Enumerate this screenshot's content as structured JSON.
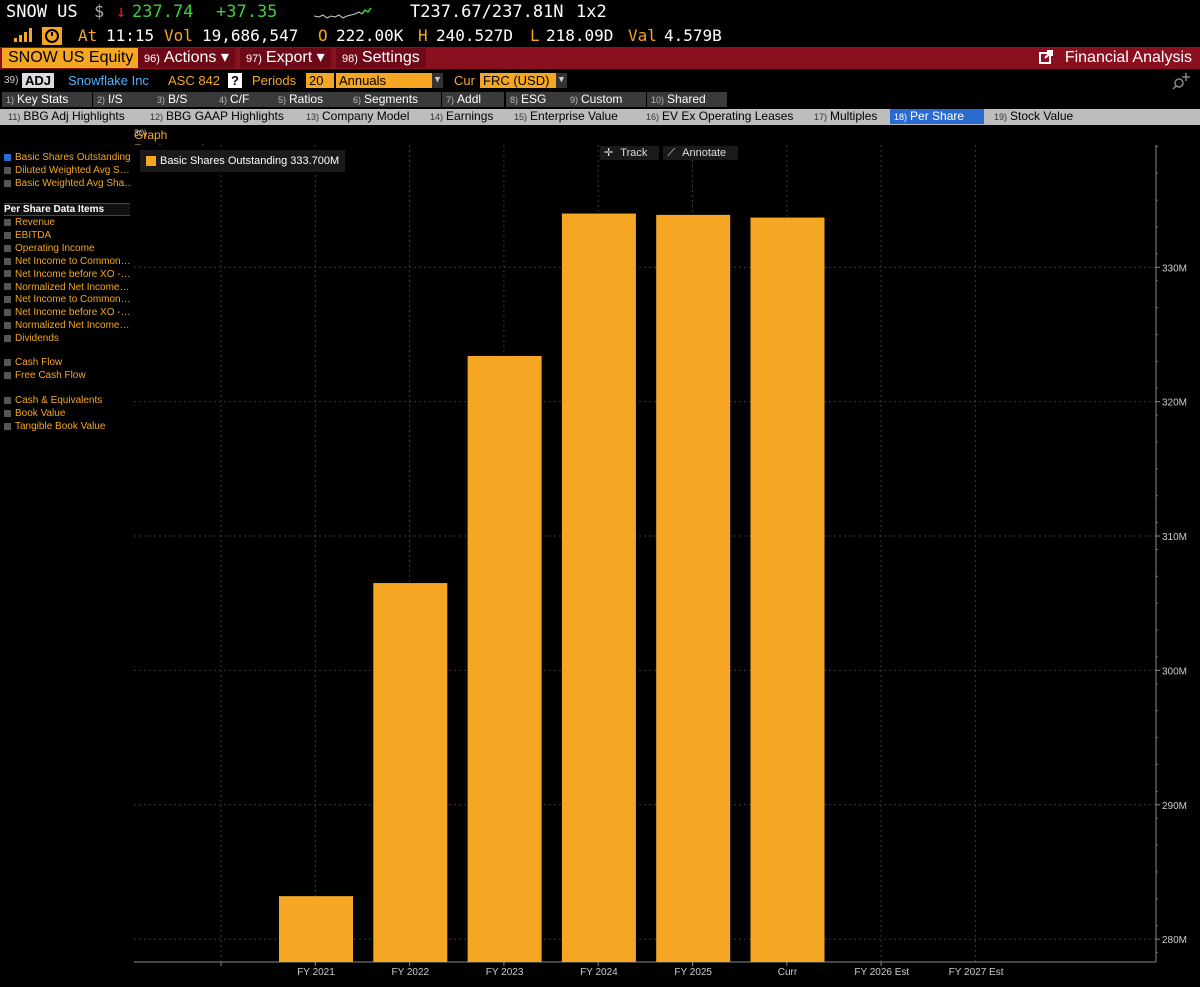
{
  "ticker": {
    "symbol": "SNOW US",
    "currency": "$",
    "arrow": "↓",
    "price": "237.74",
    "change": "+37.35",
    "quote": "T237.67/237.81N",
    "size": "1x2",
    "at_label": "At",
    "time": "11:15",
    "vol_label": "Vol",
    "vol": "19,686,547",
    "open_label": "O",
    "open": "222.00K",
    "high_label": "H",
    "high": "240.527D",
    "low_label": "L",
    "low": "218.09D",
    "val_label": "Val",
    "val": "4.579B"
  },
  "menu": {
    "equity": "SNOW US Equity",
    "actions_num": "96)",
    "actions": "Actions ▾",
    "export_num": "97)",
    "export": "Export ▾",
    "settings_num": "98)",
    "settings": "Settings",
    "financial_analysis": "Financial Analysis"
  },
  "controls": {
    "num": "39)",
    "adj": "ADJ",
    "company": "Snowflake Inc",
    "asc": "ASC 842",
    "help": "?",
    "periods_label": "Periods",
    "periods": "20",
    "freq": "Annuals",
    "cur_label": "Cur",
    "cur": "FRC (USD)"
  },
  "tabs1": [
    {
      "n": "1)",
      "label": "Key Stats"
    },
    {
      "n": "2)",
      "label": "I/S"
    },
    {
      "n": "3)",
      "label": "B/S"
    },
    {
      "n": "4)",
      "label": "C/F"
    },
    {
      "n": "5)",
      "label": "Ratios"
    },
    {
      "n": "6)",
      "label": "Segments"
    },
    {
      "n": "7)",
      "label": "Addl"
    },
    {
      "n": "8)",
      "label": "ESG"
    },
    {
      "n": "9)",
      "label": "Custom"
    },
    {
      "n": "10)",
      "label": "Shared"
    }
  ],
  "tabs2": [
    {
      "n": "11)",
      "label": "BBG Adj Highlights"
    },
    {
      "n": "12)",
      "label": "BBG GAAP Highlights"
    },
    {
      "n": "13)",
      "label": "Company Model"
    },
    {
      "n": "14)",
      "label": "Earnings"
    },
    {
      "n": "15)",
      "label": "Enterprise Value"
    },
    {
      "n": "16)",
      "label": "EV Ex Operating Leases"
    },
    {
      "n": "17)",
      "label": "Multiples"
    },
    {
      "n": "18)",
      "label": "Per Share"
    },
    {
      "n": "19)",
      "label": "Stock Value"
    }
  ],
  "graph_header": {
    "num": "30)",
    "label": "Graph Fundamentals | GF »"
  },
  "left_panel": {
    "top_items": [
      {
        "label": "Basic Shares Outstanding",
        "checked": true
      },
      {
        "label": "Diluted Weighted Avg S…",
        "checked": false
      },
      {
        "label": "Basic Weighted Avg Sha…",
        "checked": false
      }
    ],
    "section_title": "Per Share Data Items",
    "group1": [
      "Revenue",
      "EBITDA",
      "Operating Income",
      "Net Income to Common…",
      "Net Income before XO -…",
      "Normalized Net Income…",
      "Net Income to Common…",
      "Net Income before XO -…",
      "Normalized Net Income…",
      "Dividends"
    ],
    "group2": [
      "Cash Flow",
      "Free Cash Flow"
    ],
    "group3": [
      "Cash & Equivalents",
      "Book Value",
      "Tangible Book Value"
    ]
  },
  "chart_tools": {
    "track": "Track",
    "annotate": "Annotate"
  },
  "chart_data": {
    "type": "bar",
    "categories": [
      "FY 2021",
      "FY 2022",
      "FY 2023",
      "FY 2024",
      "FY 2025",
      "Curr",
      "FY 2026 Est",
      "FY 2027 Est"
    ],
    "series": [
      {
        "name": "Basic Shares Outstanding 333.700M",
        "values": [
          283.2,
          306.5,
          323.4,
          334.0,
          333.9,
          333.7,
          null,
          null
        ],
        "color": "#f5a623"
      }
    ],
    "ylim": [
      278.3,
      339.1
    ],
    "yticks": [
      280,
      290,
      300,
      310,
      320,
      330
    ],
    "ytick_labels": [
      "280M",
      "290M",
      "300M",
      "310M",
      "320M",
      "330M"
    ],
    "grid": true,
    "legend": "top-left"
  }
}
